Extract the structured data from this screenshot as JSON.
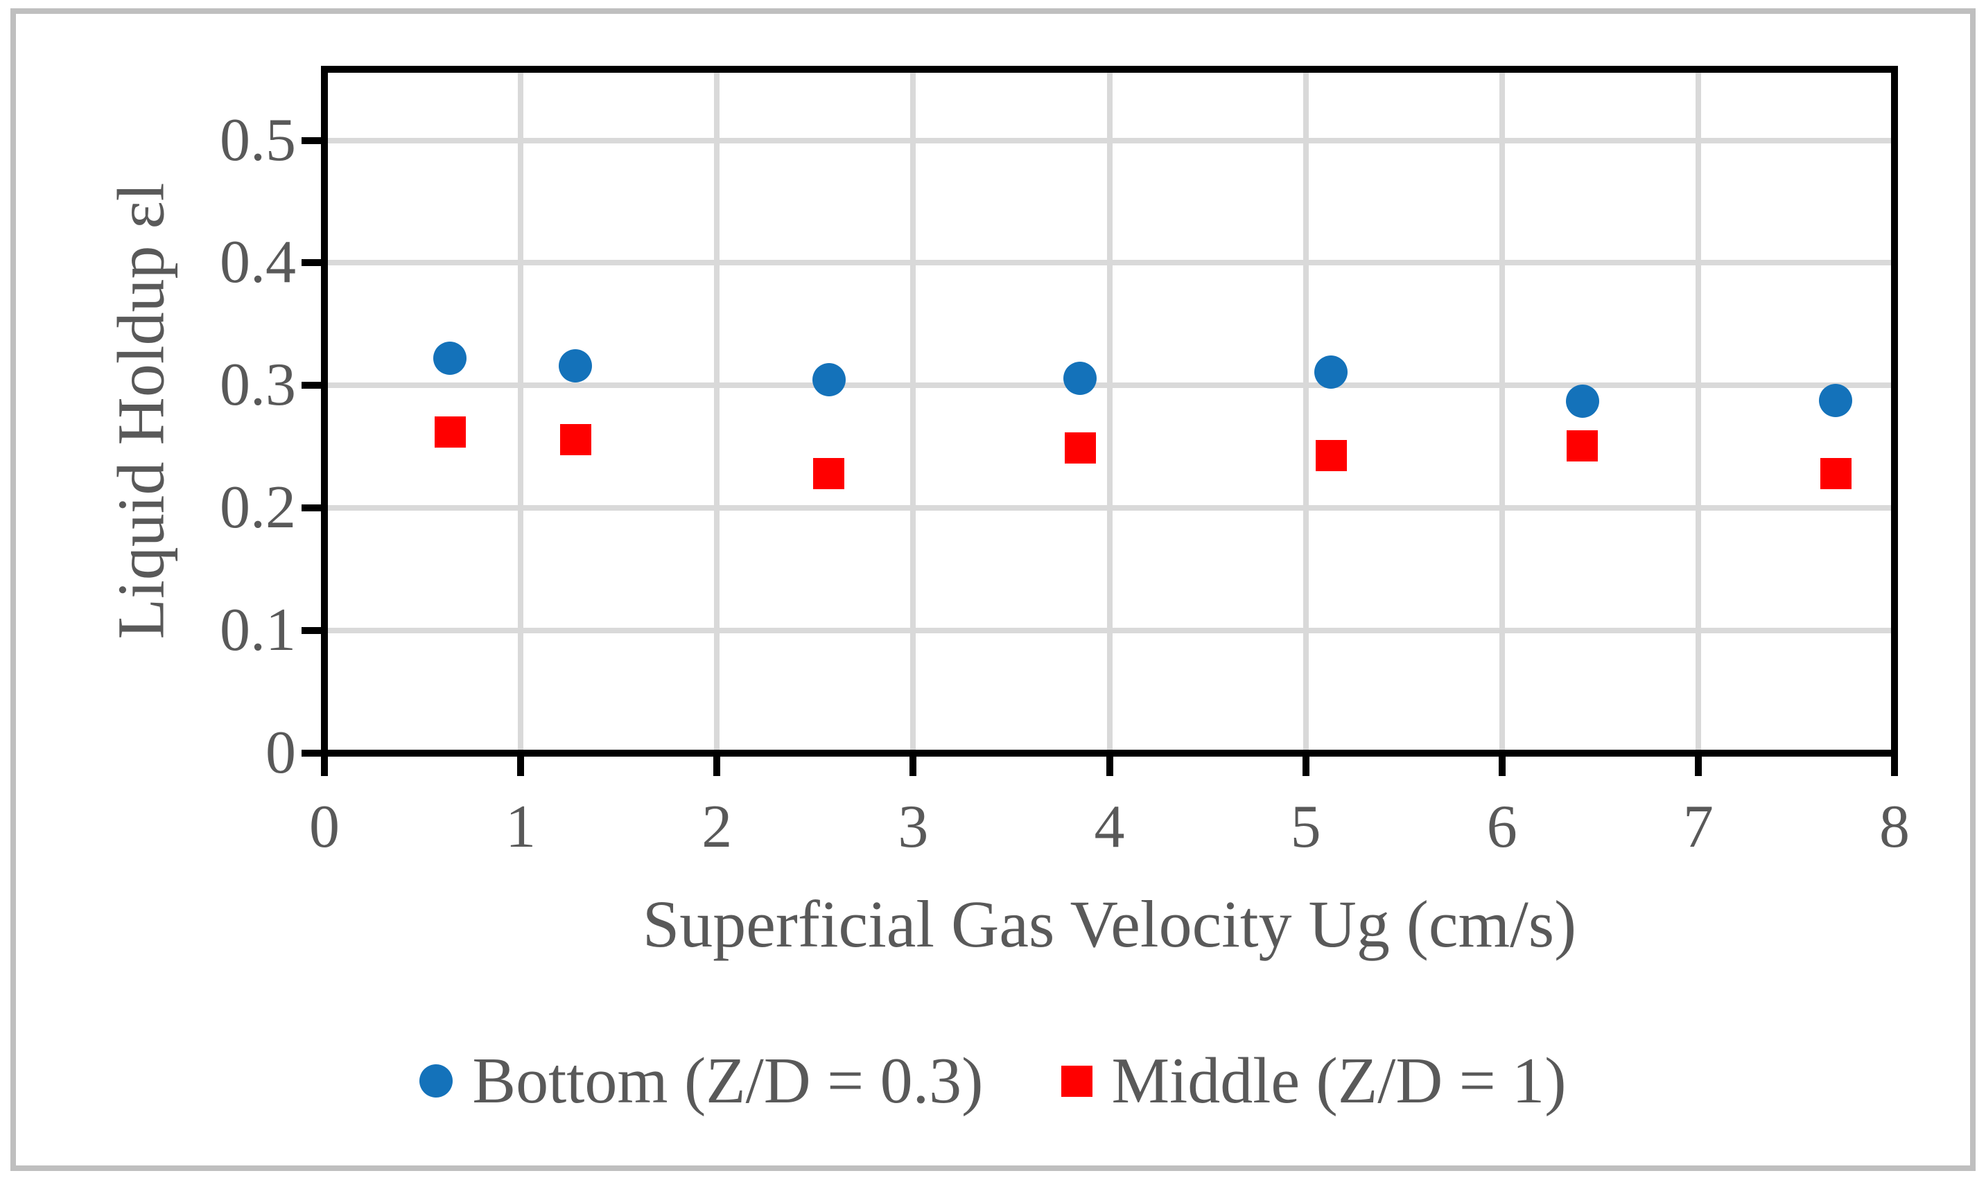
{
  "figure": {
    "background_color": "#FFFFFF",
    "outer_border_color": "#BFBFBF",
    "axis_line_color": "#000000",
    "gridline_color": "#D9D9D9",
    "text_color": "#595959"
  },
  "chart_data": {
    "type": "scatter",
    "x": [
      0.64,
      1.28,
      2.57,
      3.85,
      5.13,
      6.41,
      7.7
    ],
    "series": [
      {
        "name": "Bottom (Z/D = 0.3)",
        "marker": "circle",
        "color": "#1472BA",
        "values": [
          0.322,
          0.316,
          0.305,
          0.306,
          0.311,
          0.287,
          0.288
        ]
      },
      {
        "name": "Middle (Z/D = 1)",
        "marker": "square",
        "color": "#FF0000",
        "values": [
          0.262,
          0.256,
          0.228,
          0.249,
          0.243,
          0.251,
          0.228
        ]
      }
    ],
    "title": "",
    "xlabel": "Superficial Gas Velocity Ug (cm/s)",
    "ylabel": "Liquid Holdup εl",
    "xlim": [
      0,
      8
    ],
    "ylim": [
      0,
      0.558
    ],
    "x_ticks": [
      0,
      1,
      2,
      3,
      4,
      5,
      6,
      7,
      8
    ],
    "x_tick_labels": [
      "0",
      "1",
      "2",
      "3",
      "4",
      "5",
      "6",
      "7",
      "8"
    ],
    "y_ticks": [
      0,
      0.1,
      0.2,
      0.3,
      0.4,
      0.5
    ],
    "y_tick_labels": [
      "0",
      "0.1",
      "0.2",
      "0.3",
      "0.4",
      "0.5"
    ],
    "grid": true,
    "legend_position": "bottom-center"
  }
}
